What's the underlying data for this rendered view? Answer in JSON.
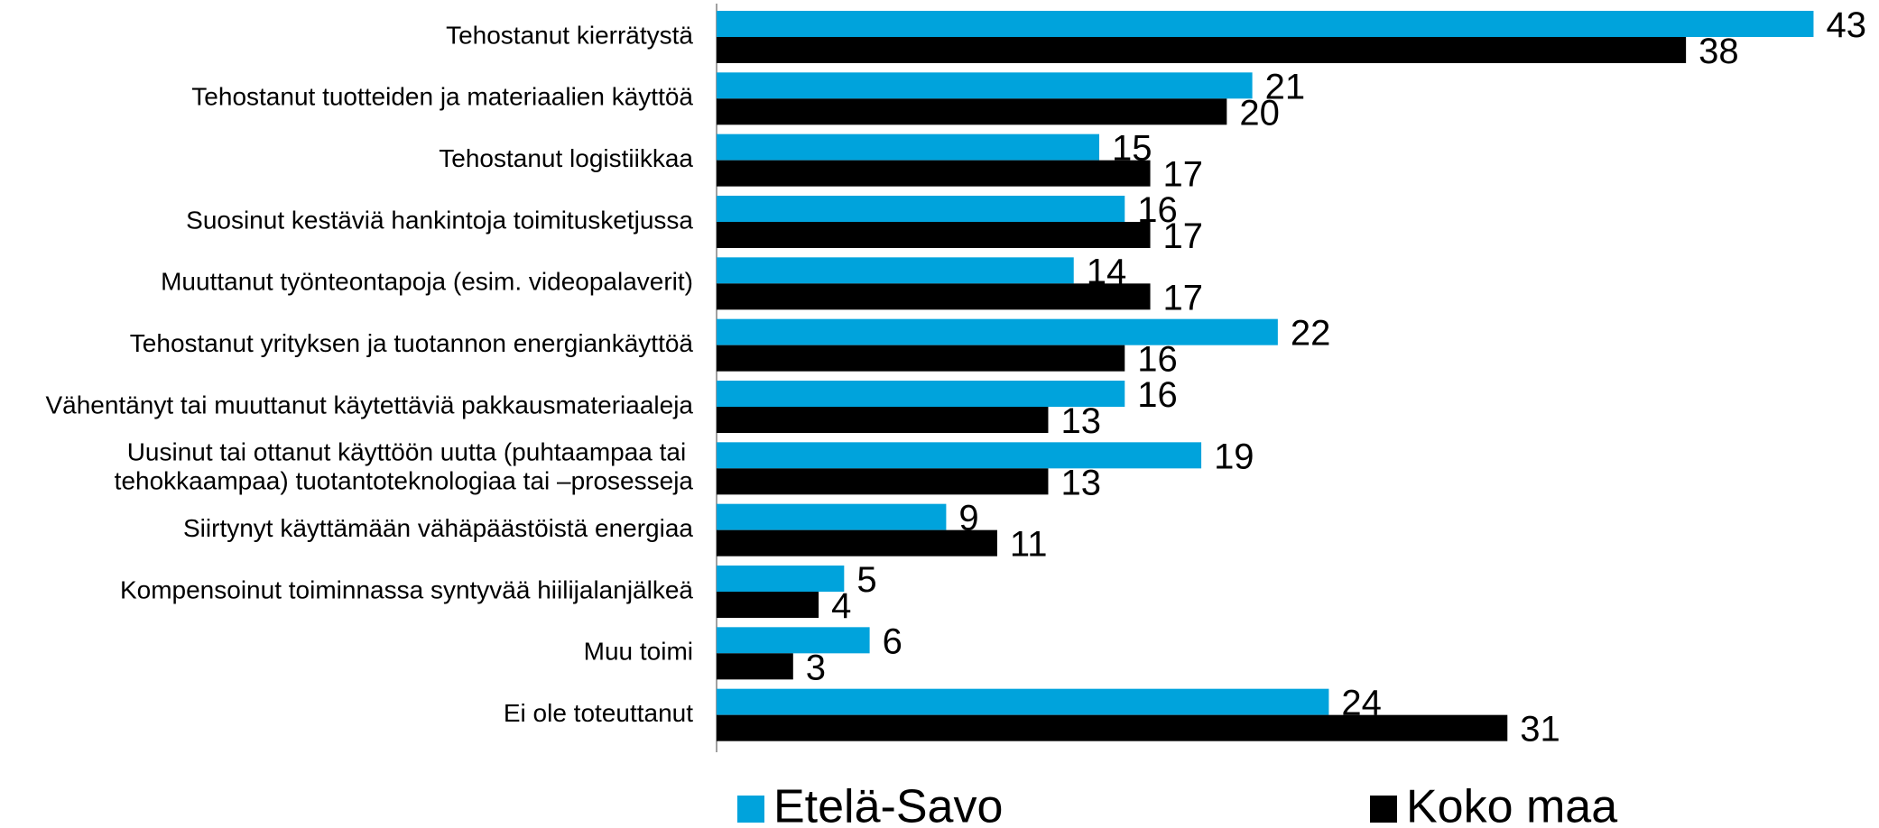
{
  "chart_data": {
    "type": "bar",
    "orientation": "horizontal",
    "categories": [
      "Tehostanut kierrätystä",
      "Tehostanut tuotteiden ja materiaalien käyttöä",
      "Tehostanut logistiikkaa",
      "Suosinut kestäviä hankintoja toimitusketjussa",
      "Muuttanut työnteontapoja (esim. videopalaverit)",
      "Tehostanut yrityksen ja tuotannon energiankäyttöä",
      "Vähentänyt tai muuttanut käytettäviä pakkausmateriaaleja",
      "Uusinut tai ottanut käyttöön uutta (puhtaampaa tai \ntehokkaampaa) tuotantoteknologiaa tai –prosesseja",
      "Siirtynyt käyttämään vähäpäästöistä energiaa",
      "Kompensoinut toiminnassa syntyvää hiilijalanjälkeä",
      "Muu toimi",
      "Ei ole toteuttanut"
    ],
    "series": [
      {
        "name": "Etelä-Savo",
        "color": "#00a3dc",
        "values": [
          43,
          21,
          15,
          16,
          14,
          22,
          16,
          19,
          9,
          5,
          6,
          24
        ]
      },
      {
        "name": "Koko maa",
        "color": "#000000",
        "values": [
          38,
          20,
          17,
          17,
          17,
          16,
          13,
          13,
          11,
          4,
          3,
          31
        ]
      }
    ],
    "xlim": [
      0,
      45
    ],
    "legend": "bottom"
  }
}
